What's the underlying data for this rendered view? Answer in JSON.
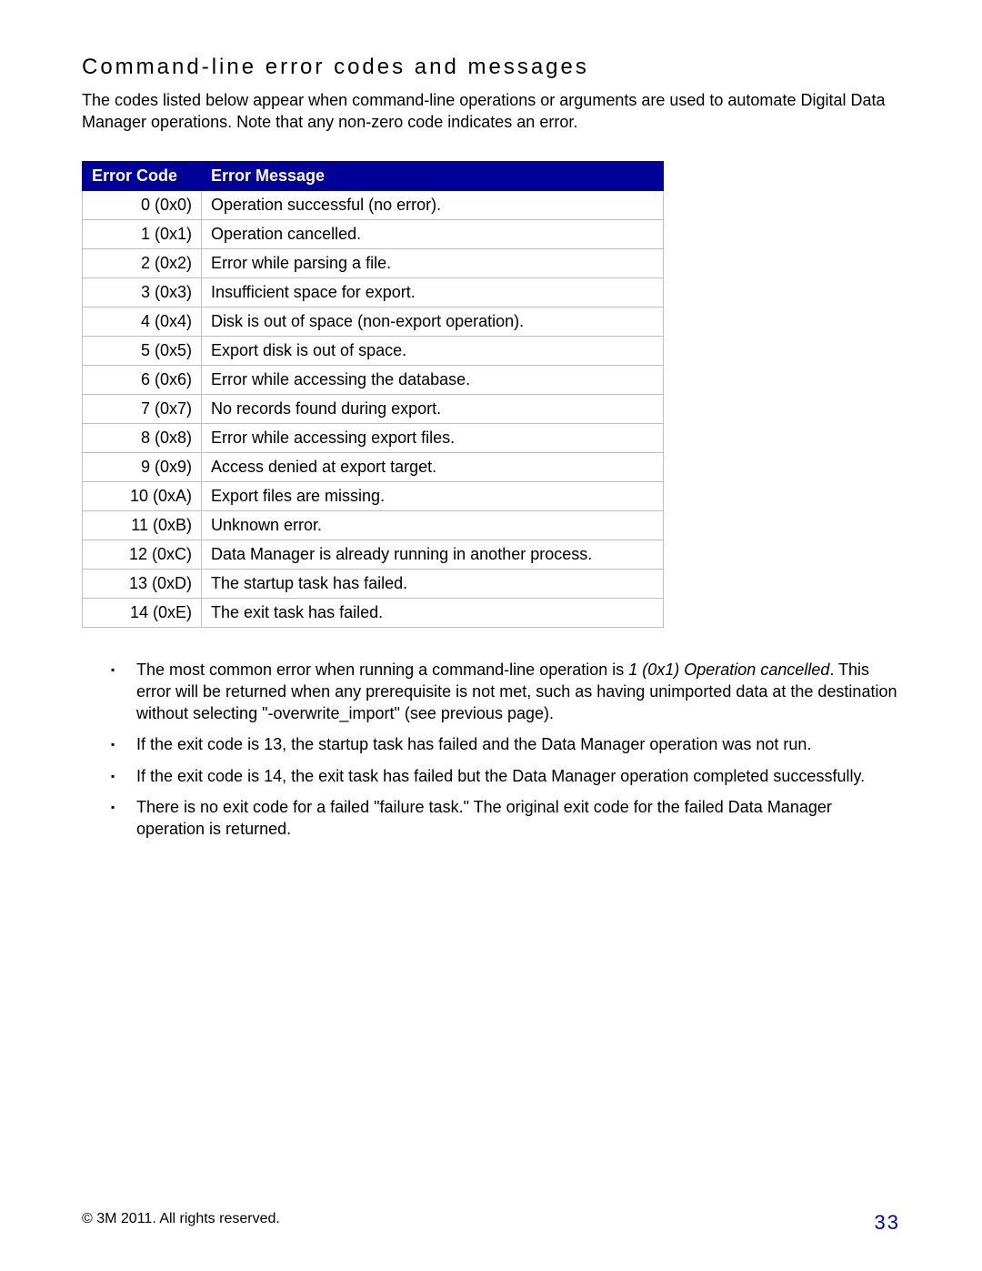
{
  "heading": "Command-line error codes and messages",
  "intro": "The codes listed below appear when command-line operations or arguments are used to automate Digital Data Manager operations. Note that any non-zero code indicates an error.",
  "table": {
    "header_bg": "#000099",
    "header_fg": "#ffffff",
    "border_color": "#bfbfbf",
    "columns": [
      "Error Code",
      "Error Message"
    ],
    "rows": [
      {
        "code": "0 (0x0)",
        "msg": "Operation successful (no error)."
      },
      {
        "code": "1 (0x1)",
        "msg": "Operation cancelled."
      },
      {
        "code": "2 (0x2)",
        "msg": "Error while parsing a file."
      },
      {
        "code": "3 (0x3)",
        "msg": "Insufficient space for export."
      },
      {
        "code": "4 (0x4)",
        "msg": "Disk is out of space (non-export operation)."
      },
      {
        "code": "5 (0x5)",
        "msg": "Export disk is out of space."
      },
      {
        "code": "6 (0x6)",
        "msg": "Error while accessing the database."
      },
      {
        "code": "7 (0x7)",
        "msg": "No records found during export."
      },
      {
        "code": "8 (0x8)",
        "msg": "Error while accessing export files."
      },
      {
        "code": "9 (0x9)",
        "msg": "Access denied at export target."
      },
      {
        "code": "10 (0xA)",
        "msg": "Export files are missing."
      },
      {
        "code": "11 (0xB)",
        "msg": "Unknown error."
      },
      {
        "code": "12 (0xC)",
        "msg": "Data Manager is already running in another process."
      },
      {
        "code": "13 (0xD)",
        "msg": "The startup task has failed."
      },
      {
        "code": "14 (0xE)",
        "msg": "The exit task has failed."
      }
    ]
  },
  "notes": [
    {
      "pre": "The most common error when running a command-line operation is ",
      "italic": "1 (0x1) Operation cancelled",
      "post": ". This error will be returned when any prerequisite is not met, such as having unimported data at the destination without selecting \"-overwrite_import\" (see previous page)."
    },
    {
      "pre": "If the exit code is 13, the startup task has failed and the Data Manager operation was not run.",
      "italic": "",
      "post": ""
    },
    {
      "pre": "If the exit code is 14, the exit task has failed but the Data Manager operation completed successfully.",
      "italic": "",
      "post": ""
    },
    {
      "pre": "There is no exit code for a failed \"failure task.\" The original exit code for the failed Data Manager operation is returned.",
      "italic": "",
      "post": ""
    }
  ],
  "footer": {
    "copyright": "© 3M 2011. All rights reserved.",
    "page_number": "33",
    "page_number_color": "#000099"
  }
}
